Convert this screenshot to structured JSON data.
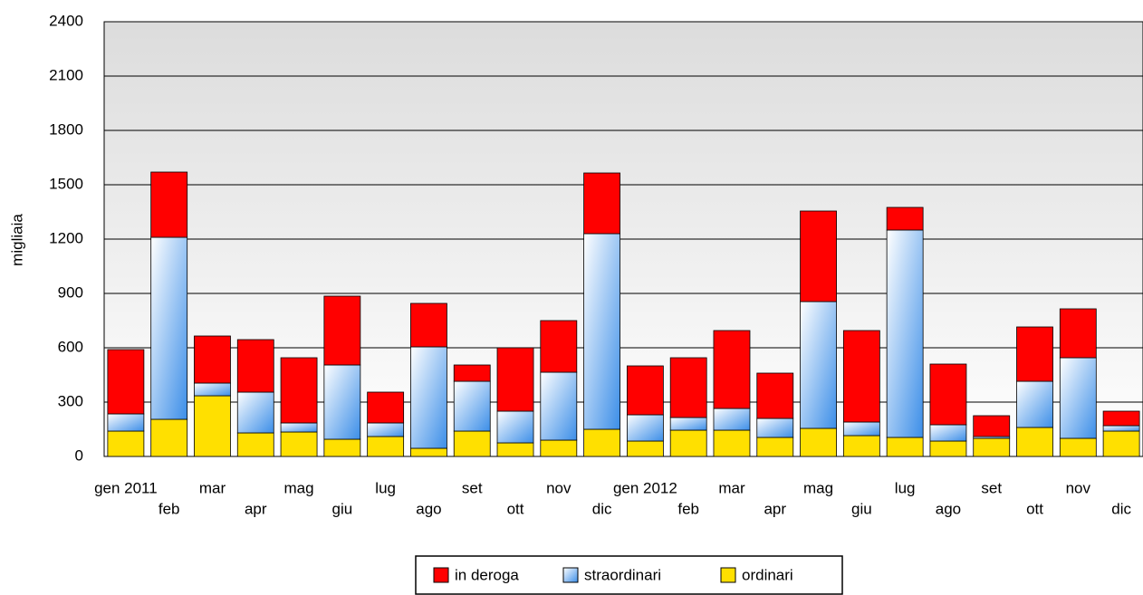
{
  "chart_data": {
    "type": "stacked_bar",
    "y_label": "migliaia",
    "categories": [
      "gen 2011",
      "feb",
      "mar",
      "apr",
      "mag",
      "giu",
      "lug",
      "ago",
      "set",
      "ott",
      "nov",
      "dic",
      "gen 2012",
      "feb",
      "mar",
      "apr",
      "mag",
      "giu",
      "lug",
      "ago",
      "set",
      "ott",
      "nov",
      "dic"
    ],
    "series": [
      {
        "name": "ordinari",
        "color": "#ffe000",
        "values": [
          140,
          205,
          335,
          130,
          135,
          95,
          110,
          45,
          140,
          75,
          90,
          150,
          85,
          145,
          145,
          105,
          155,
          115,
          105,
          85,
          100,
          160,
          100,
          140
        ]
      },
      {
        "name": "straordinari",
        "color": "#5aa8f0",
        "values": [
          95,
          1005,
          70,
          225,
          50,
          410,
          75,
          560,
          275,
          175,
          375,
          1080,
          145,
          70,
          120,
          105,
          700,
          75,
          1145,
          90,
          10,
          255,
          445,
          30
        ]
      },
      {
        "name": "in deroga",
        "color": "#ff0000",
        "values": [
          355,
          360,
          260,
          290,
          360,
          380,
          170,
          240,
          90,
          350,
          285,
          335,
          270,
          330,
          430,
          250,
          500,
          505,
          125,
          335,
          115,
          300,
          270,
          80
        ]
      }
    ],
    "ylim": [
      0,
      2400
    ],
    "yticks": [
      0,
      300,
      600,
      900,
      1200,
      1500,
      1800,
      2100,
      2400
    ],
    "grid": true
  }
}
